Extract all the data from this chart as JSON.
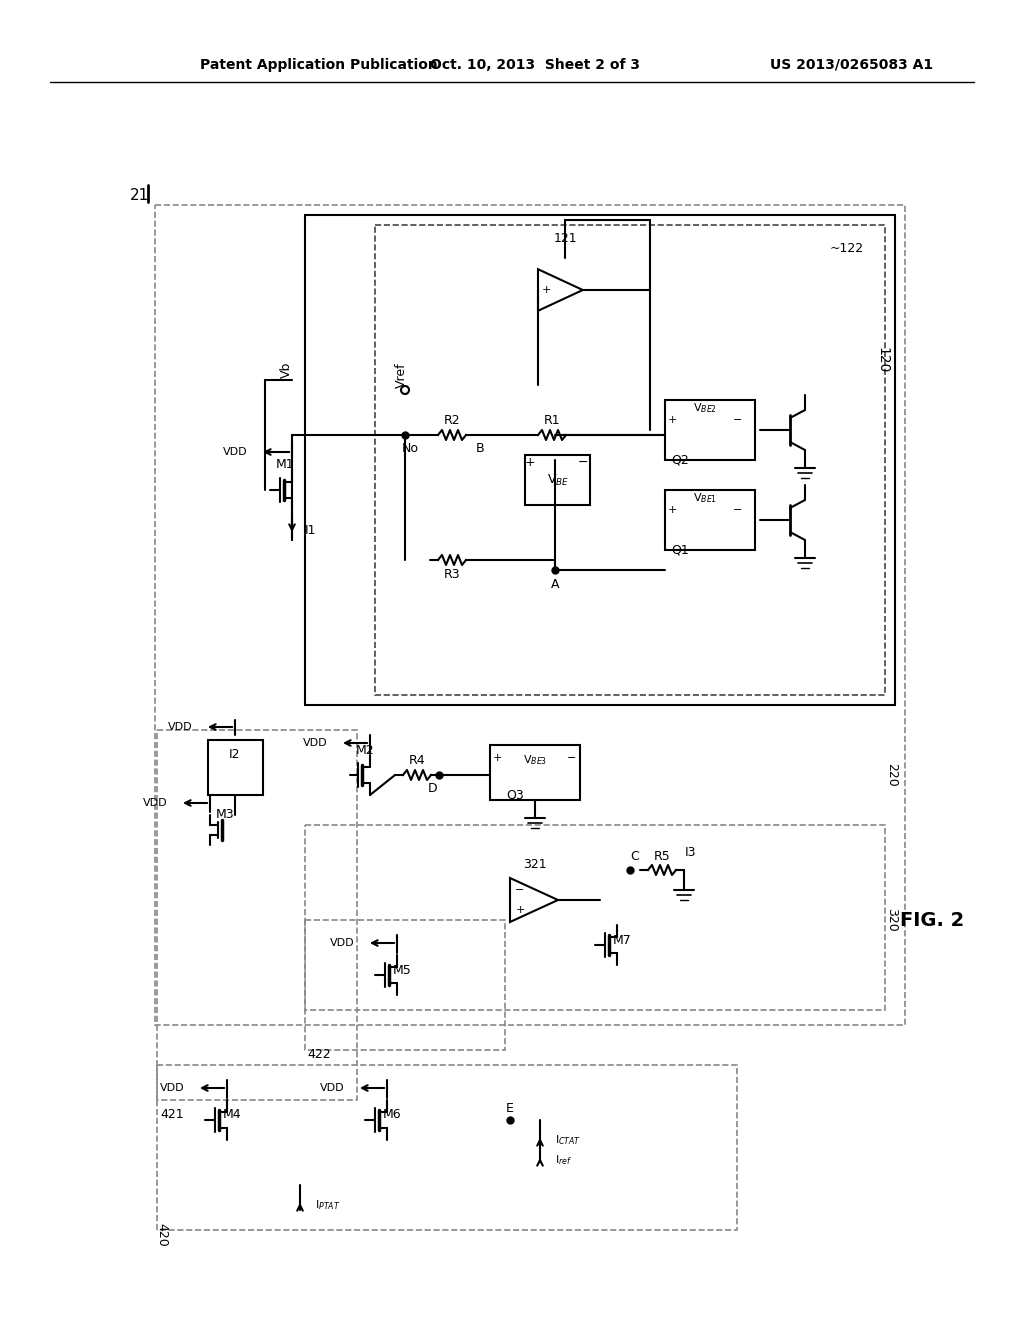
{
  "header_left": "Patent Application Publication",
  "header_mid": "Oct. 10, 2013  Sheet 2 of 3",
  "header_right": "US 2013/0265083 A1",
  "fig_label": "FIG. 2",
  "circuit_label": "21",
  "bg_color": "#ffffff",
  "line_color": "#000000",
  "dashed_color": "#555555"
}
